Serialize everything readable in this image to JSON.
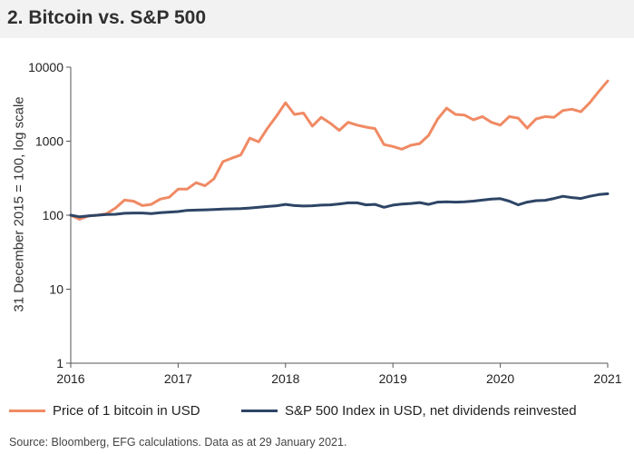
{
  "title": "2. Bitcoin vs. S&P 500",
  "source": "Source: Bloomberg, EFG calculations. Data as at 29 January 2021.",
  "colors": {
    "bitcoin": "#f08a64",
    "sp500": "#2e4566",
    "header_bg": "#f2f2f2",
    "axis": "#555555"
  },
  "chart_data": {
    "type": "line",
    "yscale": "log",
    "ylabel": "31 December 2015 = 100, log scale",
    "xlabel": "",
    "xlim": [
      2016,
      2021
    ],
    "ylim": [
      1,
      10000
    ],
    "x_ticks": [
      2016,
      2017,
      2018,
      2019,
      2020,
      2021
    ],
    "x_tick_labels": [
      "2016",
      "2017",
      "2018",
      "2019",
      "2020",
      "2021"
    ],
    "y_ticks": [
      1,
      10,
      100,
      1000,
      10000
    ],
    "y_tick_labels": [
      "1",
      "10",
      "100",
      "1000",
      "10000"
    ],
    "x": [
      2016.0,
      2016.083,
      2016.167,
      2016.25,
      2016.333,
      2016.417,
      2016.5,
      2016.583,
      2016.667,
      2016.75,
      2016.833,
      2016.917,
      2017.0,
      2017.083,
      2017.167,
      2017.25,
      2017.333,
      2017.417,
      2017.5,
      2017.583,
      2017.667,
      2017.75,
      2017.833,
      2017.917,
      2018.0,
      2018.083,
      2018.167,
      2018.25,
      2018.333,
      2018.417,
      2018.5,
      2018.583,
      2018.667,
      2018.75,
      2018.833,
      2018.917,
      2019.0,
      2019.083,
      2019.167,
      2019.25,
      2019.333,
      2019.417,
      2019.5,
      2019.583,
      2019.667,
      2019.75,
      2019.833,
      2019.917,
      2020.0,
      2020.083,
      2020.167,
      2020.25,
      2020.333,
      2020.417,
      2020.5,
      2020.583,
      2020.667,
      2020.75,
      2020.833,
      2020.917,
      2021.0
    ],
    "series": [
      {
        "name": "Price of 1 bitcoin in USD",
        "color": "#f08a64",
        "values": [
          100,
          88,
          98,
          100,
          105,
          125,
          160,
          155,
          135,
          140,
          165,
          175,
          225,
          225,
          275,
          250,
          310,
          530,
          590,
          650,
          1100,
          980,
          1500,
          2200,
          3300,
          2300,
          2400,
          1600,
          2100,
          1750,
          1400,
          1800,
          1650,
          1550,
          1480,
          900,
          850,
          780,
          880,
          930,
          1200,
          2000,
          2800,
          2300,
          2250,
          1950,
          2150,
          1800,
          1650,
          2150,
          2050,
          1500,
          2000,
          2150,
          2100,
          2600,
          2700,
          2500,
          3300,
          4700,
          6500
        ]
      },
      {
        "name": "S&P 500 Index in USD, net dividends reinvested",
        "color": "#2e4566",
        "values": [
          100,
          95,
          98,
          100,
          102,
          103,
          106,
          107,
          107,
          105,
          108,
          110,
          112,
          116,
          117,
          118,
          119,
          121,
          122,
          123,
          125,
          128,
          131,
          134,
          140,
          135,
          133,
          134,
          137,
          138,
          142,
          147,
          147,
          138,
          140,
          128,
          137,
          141,
          144,
          148,
          140,
          150,
          152,
          150,
          152,
          155,
          160,
          165,
          167,
          155,
          138,
          150,
          157,
          159,
          168,
          180,
          173,
          168,
          180,
          190,
          195
        ]
      }
    ],
    "legend": "bottom"
  }
}
